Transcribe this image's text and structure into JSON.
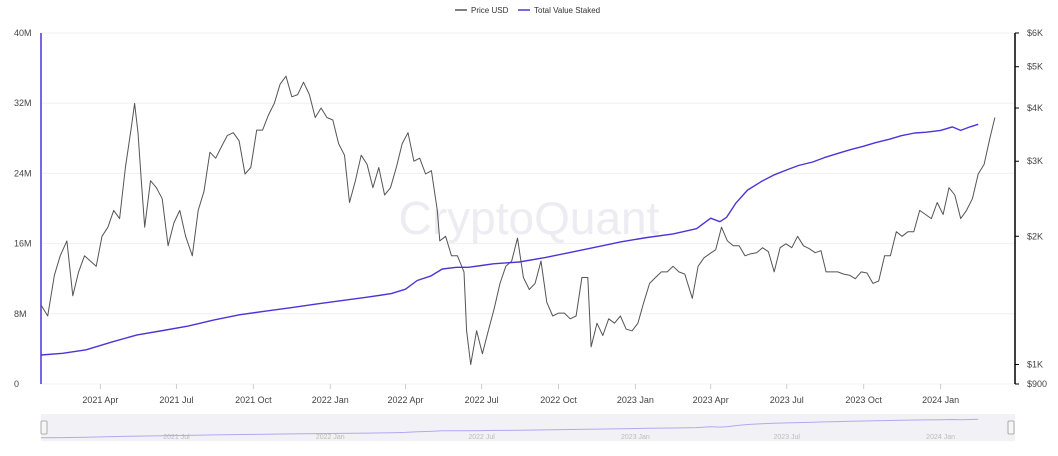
{
  "watermark": "CryptoQuant",
  "colors": {
    "price": "#555555",
    "staked": "#4b35d8",
    "grid": "#f0f0f0",
    "axis": "#000000"
  },
  "chart_data": {
    "type": "line",
    "legend": {
      "placement": "top-center",
      "items": [
        "Price USD",
        "Total Value Staked"
      ]
    },
    "x_range": [
      "2021-01-20",
      "2024-03-30"
    ],
    "x_ticks": [
      {
        "date": "2021-04-01",
        "label": "2021 Apr"
      },
      {
        "date": "2021-07-01",
        "label": "2021 Jul"
      },
      {
        "date": "2021-10-01",
        "label": "2021 Oct"
      },
      {
        "date": "2022-01-01",
        "label": "2022 Jan"
      },
      {
        "date": "2022-04-01",
        "label": "2022 Apr"
      },
      {
        "date": "2022-07-01",
        "label": "2022 Jul"
      },
      {
        "date": "2022-10-01",
        "label": "2022 Oct"
      },
      {
        "date": "2023-01-01",
        "label": "2023 Jan"
      },
      {
        "date": "2023-04-01",
        "label": "2023 Apr"
      },
      {
        "date": "2023-07-01",
        "label": "2023 Jul"
      },
      {
        "date": "2023-10-01",
        "label": "2023 Oct"
      },
      {
        "date": "2024-01-01",
        "label": "2024 Jan"
      }
    ],
    "navigator_ticks": [
      {
        "date": "2021-07-01",
        "label": "2021 Jul"
      },
      {
        "date": "2022-01-01",
        "label": "2022 Jan"
      },
      {
        "date": "2022-07-01",
        "label": "2022 Jul"
      },
      {
        "date": "2023-01-01",
        "label": "2023 Jan"
      },
      {
        "date": "2023-07-01",
        "label": "2023 Jul"
      },
      {
        "date": "2024-01-01",
        "label": "2024 Jan"
      }
    ],
    "y_left": {
      "scale": "linear",
      "range": [
        0,
        40000000
      ],
      "ticks": [
        {
          "value": 0,
          "label": "0"
        },
        {
          "value": 8000000,
          "label": "8M"
        },
        {
          "value": 16000000,
          "label": "16M"
        },
        {
          "value": 24000000,
          "label": "24M"
        },
        {
          "value": 32000000,
          "label": "32M"
        },
        {
          "value": 40000000,
          "label": "40M"
        }
      ]
    },
    "y_right": {
      "scale": "log",
      "range": [
        900,
        6000
      ],
      "ticks": [
        {
          "value": 900,
          "label": "$900"
        },
        {
          "value": 1000,
          "label": "$1K"
        },
        {
          "value": 2000,
          "label": "$2K"
        },
        {
          "value": 3000,
          "label": "$3K"
        },
        {
          "value": 4000,
          "label": "$4K"
        },
        {
          "value": 5000,
          "label": "$5K"
        },
        {
          "value": 6000,
          "label": "$6K"
        }
      ]
    },
    "series": [
      {
        "name": "Price USD",
        "axis": "right",
        "points": [
          [
            "2021-01-20",
            1380
          ],
          [
            "2021-01-28",
            1300
          ],
          [
            "2021-02-05",
            1620
          ],
          [
            "2021-02-12",
            1800
          ],
          [
            "2021-02-20",
            1950
          ],
          [
            "2021-02-27",
            1450
          ],
          [
            "2021-03-06",
            1650
          ],
          [
            "2021-03-13",
            1800
          ],
          [
            "2021-03-20",
            1750
          ],
          [
            "2021-03-27",
            1700
          ],
          [
            "2021-04-03",
            2000
          ],
          [
            "2021-04-10",
            2100
          ],
          [
            "2021-04-17",
            2300
          ],
          [
            "2021-04-24",
            2200
          ],
          [
            "2021-05-01",
            2900
          ],
          [
            "2021-05-08",
            3600
          ],
          [
            "2021-05-12",
            4100
          ],
          [
            "2021-05-16",
            3500
          ],
          [
            "2021-05-20",
            2700
          ],
          [
            "2021-05-24",
            2100
          ],
          [
            "2021-05-31",
            2700
          ],
          [
            "2021-06-07",
            2600
          ],
          [
            "2021-06-14",
            2450
          ],
          [
            "2021-06-21",
            1900
          ],
          [
            "2021-06-28",
            2150
          ],
          [
            "2021-07-05",
            2300
          ],
          [
            "2021-07-12",
            2000
          ],
          [
            "2021-07-20",
            1800
          ],
          [
            "2021-07-27",
            2300
          ],
          [
            "2021-08-03",
            2550
          ],
          [
            "2021-08-10",
            3150
          ],
          [
            "2021-08-17",
            3050
          ],
          [
            "2021-08-24",
            3250
          ],
          [
            "2021-08-31",
            3450
          ],
          [
            "2021-09-07",
            3500
          ],
          [
            "2021-09-14",
            3350
          ],
          [
            "2021-09-21",
            2800
          ],
          [
            "2021-09-28",
            2900
          ],
          [
            "2021-10-05",
            3550
          ],
          [
            "2021-10-12",
            3550
          ],
          [
            "2021-10-19",
            3850
          ],
          [
            "2021-10-26",
            4100
          ],
          [
            "2021-11-02",
            4550
          ],
          [
            "2021-11-09",
            4750
          ],
          [
            "2021-11-16",
            4250
          ],
          [
            "2021-11-23",
            4300
          ],
          [
            "2021-11-30",
            4600
          ],
          [
            "2021-12-07",
            4300
          ],
          [
            "2021-12-14",
            3800
          ],
          [
            "2021-12-21",
            4000
          ],
          [
            "2021-12-28",
            3800
          ],
          [
            "2022-01-04",
            3750
          ],
          [
            "2022-01-11",
            3300
          ],
          [
            "2022-01-18",
            3100
          ],
          [
            "2022-01-24",
            2400
          ],
          [
            "2022-01-31",
            2700
          ],
          [
            "2022-02-07",
            3100
          ],
          [
            "2022-02-14",
            2950
          ],
          [
            "2022-02-21",
            2600
          ],
          [
            "2022-02-28",
            2900
          ],
          [
            "2022-03-07",
            2500
          ],
          [
            "2022-03-14",
            2600
          ],
          [
            "2022-03-21",
            2900
          ],
          [
            "2022-03-28",
            3300
          ],
          [
            "2022-04-04",
            3500
          ],
          [
            "2022-04-11",
            3000
          ],
          [
            "2022-04-18",
            3050
          ],
          [
            "2022-04-25",
            2800
          ],
          [
            "2022-05-02",
            2850
          ],
          [
            "2022-05-09",
            2300
          ],
          [
            "2022-05-12",
            1950
          ],
          [
            "2022-05-19",
            2000
          ],
          [
            "2022-05-26",
            1800
          ],
          [
            "2022-06-02",
            1800
          ],
          [
            "2022-06-10",
            1650
          ],
          [
            "2022-06-13",
            1200
          ],
          [
            "2022-06-18",
            1000
          ],
          [
            "2022-06-25",
            1200
          ],
          [
            "2022-07-02",
            1060
          ],
          [
            "2022-07-09",
            1200
          ],
          [
            "2022-07-16",
            1350
          ],
          [
            "2022-07-23",
            1550
          ],
          [
            "2022-07-30",
            1700
          ],
          [
            "2022-08-06",
            1750
          ],
          [
            "2022-08-13",
            1980
          ],
          [
            "2022-08-20",
            1600
          ],
          [
            "2022-08-27",
            1500
          ],
          [
            "2022-09-03",
            1550
          ],
          [
            "2022-09-10",
            1750
          ],
          [
            "2022-09-17",
            1400
          ],
          [
            "2022-09-24",
            1300
          ],
          [
            "2022-10-01",
            1320
          ],
          [
            "2022-10-08",
            1320
          ],
          [
            "2022-10-15",
            1280
          ],
          [
            "2022-10-22",
            1300
          ],
          [
            "2022-10-29",
            1600
          ],
          [
            "2022-11-05",
            1600
          ],
          [
            "2022-11-09",
            1100
          ],
          [
            "2022-11-16",
            1250
          ],
          [
            "2022-11-23",
            1170
          ],
          [
            "2022-11-30",
            1280
          ],
          [
            "2022-12-07",
            1250
          ],
          [
            "2022-12-14",
            1300
          ],
          [
            "2022-12-21",
            1210
          ],
          [
            "2022-12-28",
            1200
          ],
          [
            "2023-01-04",
            1250
          ],
          [
            "2023-01-11",
            1400
          ],
          [
            "2023-01-18",
            1550
          ],
          [
            "2023-01-25",
            1600
          ],
          [
            "2023-02-01",
            1650
          ],
          [
            "2023-02-08",
            1650
          ],
          [
            "2023-02-15",
            1700
          ],
          [
            "2023-02-22",
            1650
          ],
          [
            "2023-03-01",
            1630
          ],
          [
            "2023-03-10",
            1430
          ],
          [
            "2023-03-17",
            1700
          ],
          [
            "2023-03-24",
            1780
          ],
          [
            "2023-03-31",
            1820
          ],
          [
            "2023-04-07",
            1860
          ],
          [
            "2023-04-14",
            2100
          ],
          [
            "2023-04-21",
            1950
          ],
          [
            "2023-04-28",
            1900
          ],
          [
            "2023-05-05",
            1900
          ],
          [
            "2023-05-12",
            1800
          ],
          [
            "2023-05-19",
            1820
          ],
          [
            "2023-05-26",
            1830
          ],
          [
            "2023-06-02",
            1880
          ],
          [
            "2023-06-09",
            1840
          ],
          [
            "2023-06-16",
            1650
          ],
          [
            "2023-06-23",
            1880
          ],
          [
            "2023-06-30",
            1920
          ],
          [
            "2023-07-07",
            1880
          ],
          [
            "2023-07-14",
            2000
          ],
          [
            "2023-07-21",
            1900
          ],
          [
            "2023-07-28",
            1870
          ],
          [
            "2023-08-04",
            1830
          ],
          [
            "2023-08-11",
            1850
          ],
          [
            "2023-08-17",
            1650
          ],
          [
            "2023-08-24",
            1650
          ],
          [
            "2023-08-31",
            1650
          ],
          [
            "2023-09-07",
            1630
          ],
          [
            "2023-09-14",
            1620
          ],
          [
            "2023-09-21",
            1590
          ],
          [
            "2023-09-28",
            1650
          ],
          [
            "2023-10-05",
            1640
          ],
          [
            "2023-10-12",
            1550
          ],
          [
            "2023-10-19",
            1570
          ],
          [
            "2023-10-26",
            1800
          ],
          [
            "2023-11-02",
            1800
          ],
          [
            "2023-11-09",
            2050
          ],
          [
            "2023-11-16",
            2000
          ],
          [
            "2023-11-23",
            2050
          ],
          [
            "2023-11-30",
            2050
          ],
          [
            "2023-12-07",
            2300
          ],
          [
            "2023-12-14",
            2250
          ],
          [
            "2023-12-21",
            2200
          ],
          [
            "2023-12-28",
            2400
          ],
          [
            "2024-01-04",
            2250
          ],
          [
            "2024-01-11",
            2600
          ],
          [
            "2024-01-18",
            2500
          ],
          [
            "2024-01-25",
            2200
          ],
          [
            "2024-02-01",
            2300
          ],
          [
            "2024-02-08",
            2450
          ],
          [
            "2024-02-15",
            2800
          ],
          [
            "2024-02-22",
            2950
          ],
          [
            "2024-02-29",
            3400
          ],
          [
            "2024-03-06",
            3800
          ]
        ]
      },
      {
        "name": "Total Value Staked",
        "axis": "left",
        "points": [
          [
            "2021-01-20",
            3300000
          ],
          [
            "2021-02-15",
            3500000
          ],
          [
            "2021-03-15",
            3900000
          ],
          [
            "2021-04-15",
            4800000
          ],
          [
            "2021-05-15",
            5600000
          ],
          [
            "2021-06-15",
            6100000
          ],
          [
            "2021-07-15",
            6600000
          ],
          [
            "2021-08-15",
            7300000
          ],
          [
            "2021-09-15",
            7900000
          ],
          [
            "2021-10-15",
            8300000
          ],
          [
            "2021-11-15",
            8700000
          ],
          [
            "2021-12-15",
            9100000
          ],
          [
            "2022-01-15",
            9500000
          ],
          [
            "2022-02-15",
            9900000
          ],
          [
            "2022-03-15",
            10300000
          ],
          [
            "2022-04-01",
            10800000
          ],
          [
            "2022-04-15",
            11800000
          ],
          [
            "2022-05-01",
            12300000
          ],
          [
            "2022-05-15",
            13100000
          ],
          [
            "2022-06-01",
            13300000
          ],
          [
            "2022-06-15",
            13300000
          ],
          [
            "2022-07-01",
            13500000
          ],
          [
            "2022-07-15",
            13700000
          ],
          [
            "2022-08-15",
            13900000
          ],
          [
            "2022-09-15",
            14400000
          ],
          [
            "2022-10-15",
            15000000
          ],
          [
            "2022-11-15",
            15600000
          ],
          [
            "2022-12-15",
            16200000
          ],
          [
            "2023-01-15",
            16700000
          ],
          [
            "2023-02-15",
            17100000
          ],
          [
            "2023-03-15",
            17700000
          ],
          [
            "2023-04-01",
            18900000
          ],
          [
            "2023-04-12",
            18500000
          ],
          [
            "2023-04-20",
            19000000
          ],
          [
            "2023-05-01",
            20600000
          ],
          [
            "2023-05-15",
            22100000
          ],
          [
            "2023-06-01",
            23100000
          ],
          [
            "2023-06-15",
            23800000
          ],
          [
            "2023-07-01",
            24400000
          ],
          [
            "2023-07-15",
            24900000
          ],
          [
            "2023-08-01",
            25300000
          ],
          [
            "2023-08-15",
            25800000
          ],
          [
            "2023-09-01",
            26300000
          ],
          [
            "2023-09-15",
            26700000
          ],
          [
            "2023-10-01",
            27100000
          ],
          [
            "2023-10-15",
            27500000
          ],
          [
            "2023-11-01",
            27900000
          ],
          [
            "2023-11-15",
            28300000
          ],
          [
            "2023-12-01",
            28600000
          ],
          [
            "2023-12-15",
            28700000
          ],
          [
            "2024-01-01",
            28900000
          ],
          [
            "2024-01-15",
            29300000
          ],
          [
            "2024-01-25",
            28900000
          ],
          [
            "2024-02-05",
            29300000
          ],
          [
            "2024-02-15",
            29600000
          ]
        ]
      }
    ],
    "grid": true
  }
}
